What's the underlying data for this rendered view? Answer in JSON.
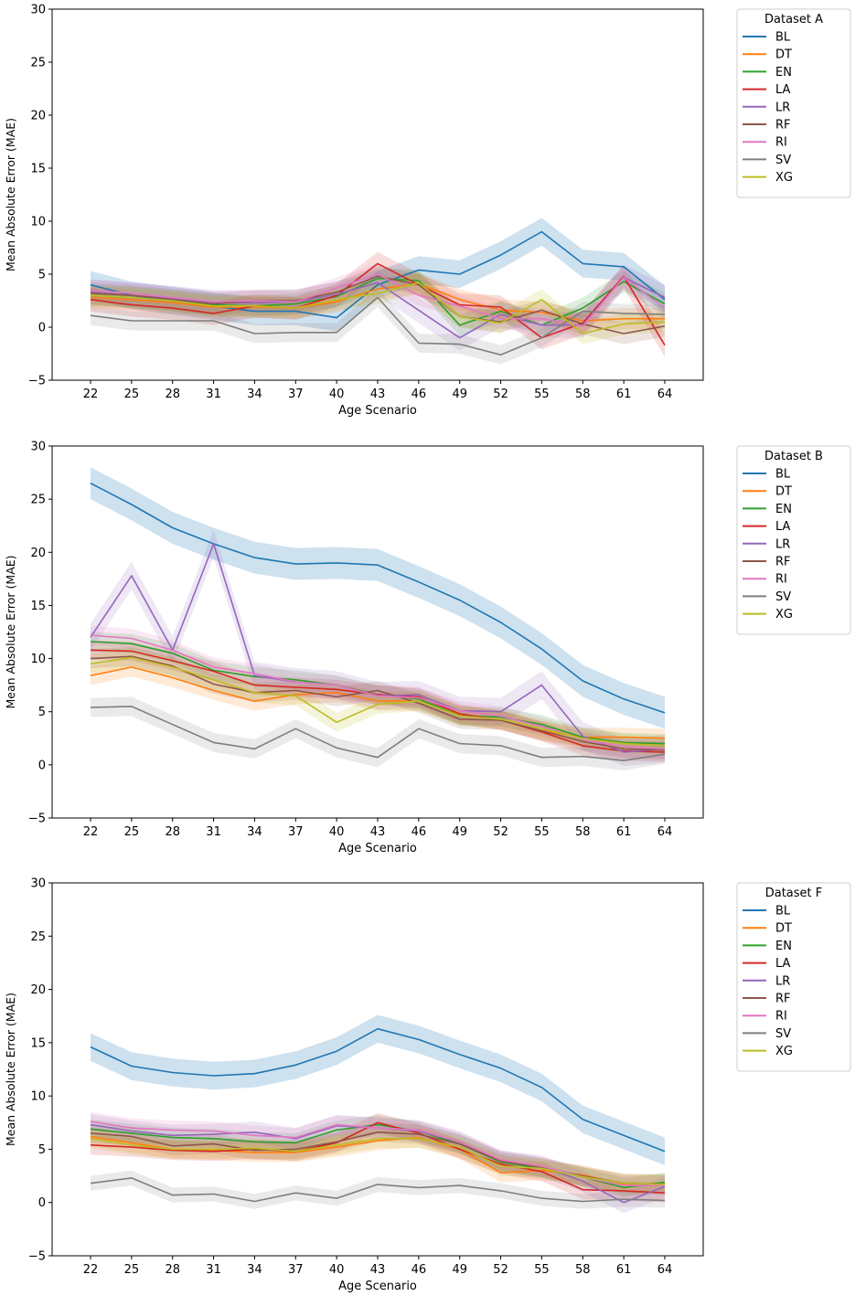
{
  "series_styles": [
    {
      "name": "BL",
      "color": "#1f77b4"
    },
    {
      "name": "DT",
      "color": "#ff7f0e"
    },
    {
      "name": "EN",
      "color": "#2ca02c"
    },
    {
      "name": "LA",
      "color": "#d62728"
    },
    {
      "name": "LR",
      "color": "#9467bd"
    },
    {
      "name": "RF",
      "color": "#8c564b"
    },
    {
      "name": "RI",
      "color": "#e377c2"
    },
    {
      "name": "SV",
      "color": "#7f7f7f"
    },
    {
      "name": "XG",
      "color": "#bcbd22"
    }
  ],
  "chart_data": [
    {
      "type": "line",
      "legend_title": "Dataset A",
      "legend_position": "outside-top-right",
      "xlabel": "Age Scenario",
      "ylabel": "Mean Absolute Error (MAE)",
      "ylim": [
        -5,
        30
      ],
      "yticks": [
        -5,
        0,
        5,
        10,
        15,
        20,
        25,
        30
      ],
      "categories": [
        "22",
        "25",
        "28",
        "31",
        "34",
        "37",
        "40",
        "43",
        "46",
        "49",
        "52",
        "55",
        "58",
        "61",
        "64"
      ],
      "series": [
        {
          "name": "BL",
          "values": [
            4.0,
            3.0,
            2.5,
            2.0,
            1.5,
            1.5,
            0.9,
            4.0,
            5.4,
            5.0,
            6.8,
            9.0,
            6.0,
            5.7,
            2.6
          ],
          "band": 1.3
        },
        {
          "name": "DT",
          "values": [
            2.8,
            2.6,
            2.3,
            1.9,
            1.9,
            1.8,
            2.4,
            3.6,
            4.1,
            2.6,
            1.6,
            1.4,
            0.6,
            0.8,
            0.8
          ],
          "band": 1.0
        },
        {
          "name": "EN",
          "values": [
            3.0,
            2.8,
            2.5,
            2.1,
            2.0,
            2.2,
            2.9,
            4.6,
            4.4,
            0.2,
            1.5,
            0.2,
            1.8,
            4.3,
            2.2
          ],
          "band": 1.0
        },
        {
          "name": "LA",
          "values": [
            2.6,
            2.1,
            1.8,
            1.3,
            2.0,
            1.8,
            3.0,
            6.0,
            4.0,
            2.1,
            1.9,
            -1.0,
            0.4,
            4.8,
            -1.7
          ],
          "band": 1.1
        },
        {
          "name": "LR",
          "values": [
            3.3,
            3.0,
            2.7,
            2.3,
            2.3,
            2.4,
            3.1,
            4.2,
            1.6,
            -1.0,
            1.2,
            0.2,
            0.2,
            4.7,
            2.8
          ],
          "band": 1.2
        },
        {
          "name": "RF",
          "values": [
            3.2,
            3.0,
            2.6,
            2.2,
            2.5,
            2.5,
            3.3,
            4.8,
            4.0,
            1.0,
            0.5,
            1.6,
            0.3,
            -0.6,
            0.1
          ],
          "band": 1.0
        },
        {
          "name": "RI",
          "values": [
            3.5,
            3.2,
            2.8,
            2.4,
            2.5,
            2.4,
            3.7,
            5.0,
            3.0,
            2.0,
            0.8,
            0.8,
            0.1,
            4.7,
            1.8
          ],
          "band": 1.0
        },
        {
          "name": "SV",
          "values": [
            1.1,
            0.6,
            0.6,
            0.6,
            -0.6,
            -0.5,
            -0.5,
            2.8,
            -1.5,
            -1.6,
            -2.6,
            -1.0,
            1.5,
            1.3,
            1.2
          ],
          "band": 0.9
        },
        {
          "name": "XG",
          "values": [
            3.0,
            2.8,
            2.5,
            2.0,
            2.0,
            1.8,
            2.6,
            3.2,
            4.2,
            1.0,
            0.4,
            2.6,
            -0.6,
            0.3,
            0.5
          ],
          "band": 1.0
        }
      ]
    },
    {
      "type": "line",
      "legend_title": "Dataset B",
      "legend_position": "outside-top-right",
      "xlabel": "Age Scenario",
      "ylabel": "Mean Absolute Error (MAE)",
      "ylim": [
        -5,
        30
      ],
      "yticks": [
        -5,
        0,
        5,
        10,
        15,
        20,
        25,
        30
      ],
      "categories": [
        "22",
        "25",
        "28",
        "31",
        "34",
        "37",
        "40",
        "43",
        "46",
        "49",
        "52",
        "55",
        "58",
        "61",
        "64"
      ],
      "series": [
        {
          "name": "BL",
          "values": [
            26.5,
            24.5,
            22.3,
            20.8,
            19.5,
            18.9,
            19.0,
            18.8,
            17.2,
            15.5,
            13.4,
            10.9,
            7.9,
            6.2,
            4.9
          ],
          "band": 1.5
        },
        {
          "name": "DT",
          "values": [
            8.4,
            9.2,
            8.2,
            7.0,
            6.0,
            6.6,
            6.8,
            6.0,
            6.0,
            4.7,
            4.2,
            3.2,
            2.6,
            2.6,
            2.5
          ],
          "band": 0.9
        },
        {
          "name": "EN",
          "values": [
            11.6,
            11.4,
            10.5,
            8.9,
            8.3,
            8.0,
            7.5,
            6.6,
            6.2,
            4.6,
            4.5,
            3.8,
            2.6,
            2.1,
            2.0
          ],
          "band": 0.9
        },
        {
          "name": "LA",
          "values": [
            10.8,
            10.7,
            9.8,
            8.8,
            7.5,
            7.3,
            7.1,
            6.6,
            6.4,
            4.8,
            4.2,
            3.1,
            1.8,
            1.3,
            1.2
          ],
          "band": 0.9
        },
        {
          "name": "LR",
          "values": [
            12.0,
            17.8,
            10.8,
            20.8,
            8.4,
            7.8,
            7.5,
            6.5,
            6.6,
            5.1,
            5.0,
            7.5,
            2.7,
            1.2,
            1.5
          ],
          "band": 1.3
        },
        {
          "name": "RF",
          "values": [
            10.0,
            10.2,
            9.3,
            7.6,
            6.8,
            7.0,
            6.4,
            7.0,
            5.8,
            4.3,
            4.2,
            3.2,
            2.2,
            1.5,
            1.4
          ],
          "band": 0.9
        },
        {
          "name": "RI",
          "values": [
            12.2,
            11.9,
            10.8,
            9.2,
            8.6,
            7.8,
            7.5,
            6.5,
            6.3,
            5.1,
            4.6,
            3.6,
            2.4,
            1.7,
            1.5
          ],
          "band": 0.9
        },
        {
          "name": "SV",
          "values": [
            5.4,
            5.5,
            3.8,
            2.1,
            1.5,
            3.4,
            1.6,
            0.7,
            3.4,
            2.0,
            1.8,
            0.7,
            0.8,
            0.4,
            1.0
          ],
          "band": 0.9
        },
        {
          "name": "XG",
          "values": [
            9.5,
            10.1,
            9.2,
            8.0,
            6.8,
            6.5,
            4.0,
            5.7,
            6.0,
            4.6,
            4.3,
            3.4,
            2.5,
            2.0,
            1.8
          ],
          "band": 0.9
        }
      ]
    },
    {
      "type": "line",
      "legend_title": "Dataset F",
      "legend_position": "outside-top-right",
      "xlabel": "Age Scenario",
      "ylabel": "Mean Absolute Error (MAE)",
      "ylim": [
        -5,
        30
      ],
      "yticks": [
        -5,
        0,
        5,
        10,
        15,
        20,
        25,
        30
      ],
      "categories": [
        "22",
        "25",
        "28",
        "31",
        "34",
        "37",
        "40",
        "43",
        "46",
        "49",
        "52",
        "55",
        "58",
        "61",
        "64"
      ],
      "series": [
        {
          "name": "BL",
          "values": [
            14.6,
            12.8,
            12.2,
            11.9,
            12.1,
            12.9,
            14.2,
            16.3,
            15.3,
            13.9,
            12.6,
            10.8,
            7.8,
            6.3,
            4.8
          ],
          "band": 1.3
        },
        {
          "name": "DT",
          "values": [
            6.2,
            5.6,
            5.0,
            4.9,
            4.7,
            4.7,
            5.2,
            5.8,
            6.1,
            5.0,
            2.8,
            3.0,
            2.6,
            1.7,
            1.8
          ],
          "band": 0.9
        },
        {
          "name": "EN",
          "values": [
            6.9,
            6.5,
            6.1,
            6.0,
            5.7,
            5.6,
            6.8,
            7.3,
            6.7,
            5.5,
            3.8,
            3.2,
            2.4,
            1.4,
            1.9
          ],
          "band": 0.9
        },
        {
          "name": "LA",
          "values": [
            5.4,
            5.2,
            4.9,
            4.8,
            5.0,
            4.8,
            5.6,
            7.5,
            6.5,
            5.0,
            3.6,
            2.9,
            1.2,
            1.1,
            0.9
          ],
          "band": 0.9
        },
        {
          "name": "LR",
          "values": [
            7.3,
            6.7,
            6.3,
            6.4,
            6.6,
            6.0,
            7.2,
            7.0,
            6.7,
            5.7,
            3.9,
            3.4,
            2.0,
            0.0,
            1.5
          ],
          "band": 1.0
        },
        {
          "name": "RF",
          "values": [
            6.5,
            6.2,
            5.3,
            5.5,
            4.9,
            5.0,
            5.7,
            6.6,
            6.4,
            5.5,
            3.9,
            3.3,
            2.5,
            1.8,
            1.7
          ],
          "band": 0.9
        },
        {
          "name": "RI",
          "values": [
            7.6,
            7.0,
            6.8,
            6.7,
            6.3,
            6.1,
            7.3,
            7.0,
            6.8,
            5.7,
            4.0,
            3.4,
            2.4,
            1.6,
            1.6
          ],
          "band": 0.9
        },
        {
          "name": "SV",
          "values": [
            1.8,
            2.3,
            0.7,
            0.8,
            0.1,
            0.9,
            0.4,
            1.7,
            1.4,
            1.6,
            1.1,
            0.4,
            0.1,
            0.3,
            0.2
          ],
          "band": 0.7
        },
        {
          "name": "XG",
          "values": [
            6.0,
            5.4,
            5.0,
            5.0,
            5.1,
            4.8,
            5.4,
            6.0,
            6.0,
            5.2,
            3.4,
            3.2,
            2.4,
            1.8,
            1.7
          ],
          "band": 0.9
        }
      ]
    }
  ]
}
